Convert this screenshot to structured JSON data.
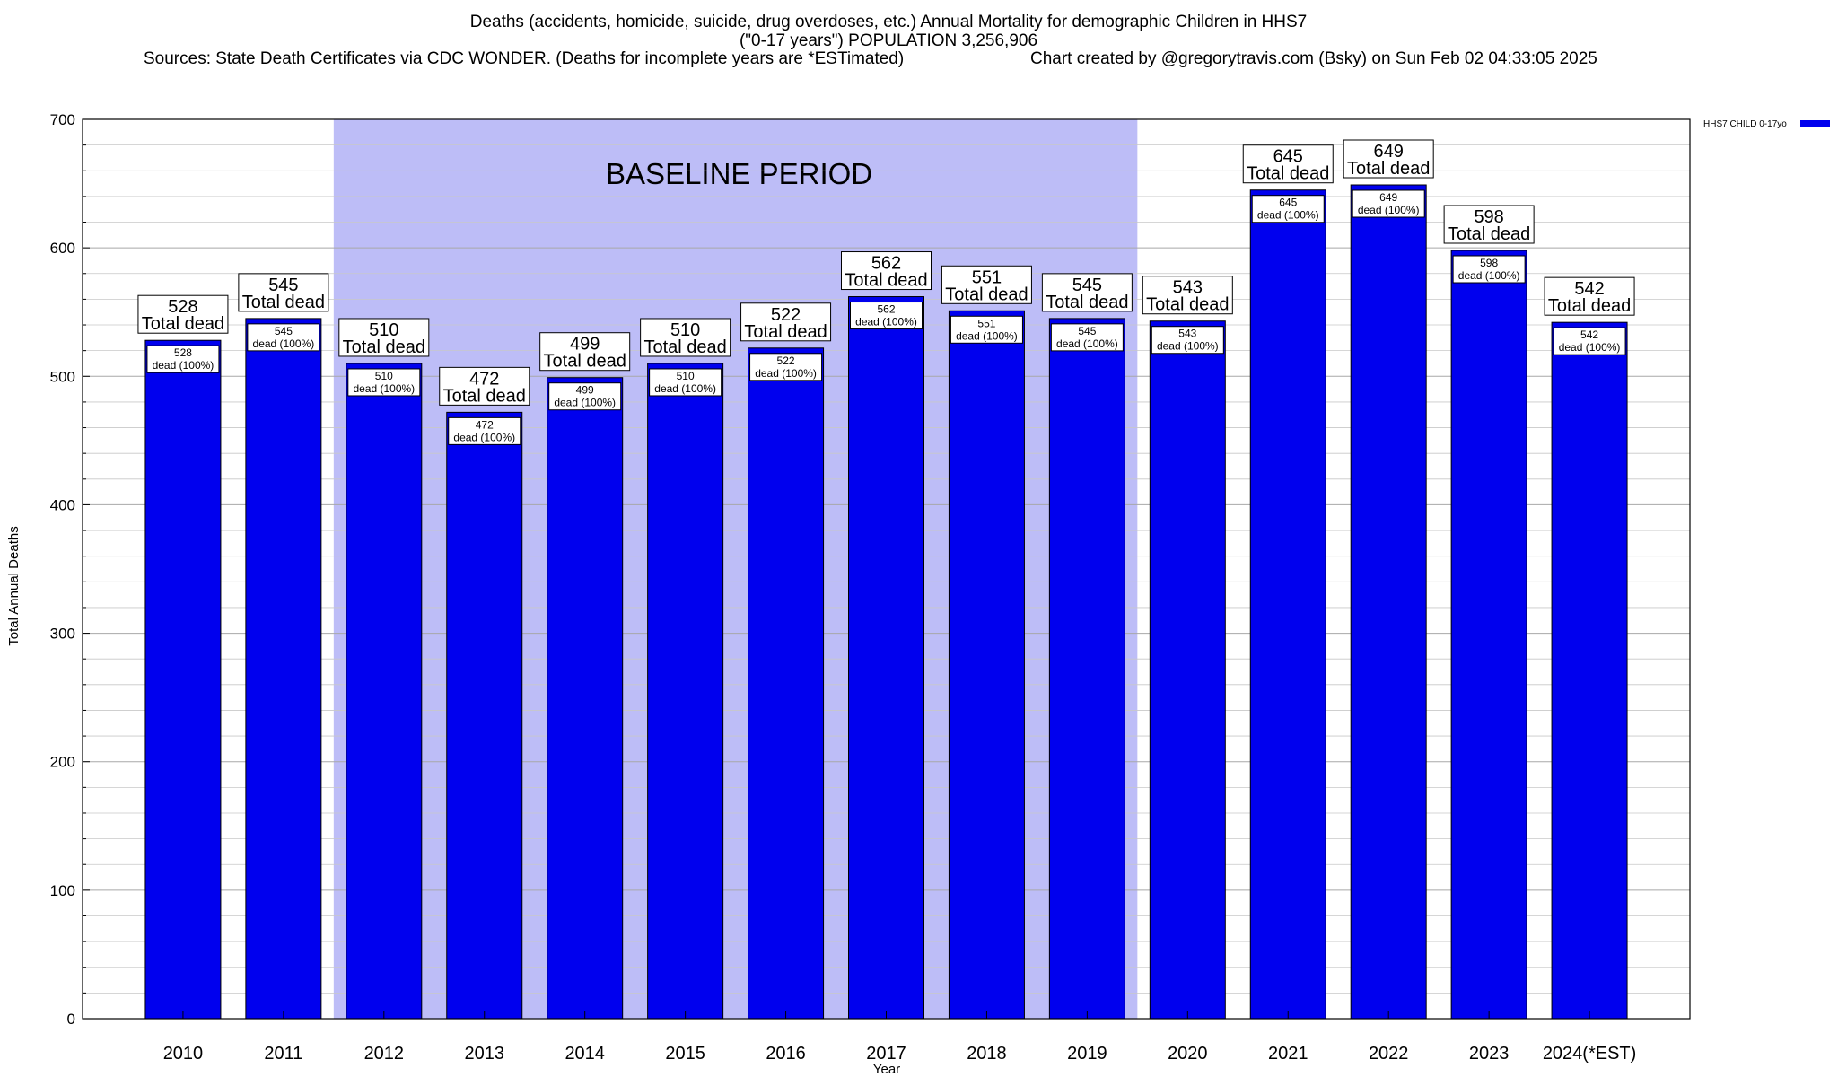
{
  "chart_data": {
    "type": "bar",
    "title": "Deaths (accidents, homicide, suicide, drug overdoses, etc.) Annual Mortality for demographic Children in HHS7",
    "title_line2": "(\"0-17 years\") POPULATION 3,256,906",
    "sources": "Sources: State Death Certificates via CDC WONDER. (Deaths for incomplete years are *ESTimated)",
    "credit": "Chart created by @gregorytravis.com (Bsky) on Sun Feb 02 04:33:05 2025",
    "xlabel": "Year",
    "ylabel": "Total Annual Deaths",
    "ylim": [
      0,
      700
    ],
    "yticks": [
      "0",
      "100",
      "200",
      "300",
      "400",
      "500",
      "600",
      "700"
    ],
    "categories": [
      "2010",
      "2011",
      "2012",
      "2013",
      "2014",
      "2015",
      "2016",
      "2017",
      "2018",
      "2019",
      "2020",
      "2021",
      "2022",
      "2023",
      "2024(*EST)"
    ],
    "series": [
      {
        "name": "HHS7 CHILD 0-17yo",
        "color": "#0000ee",
        "values": [
          528,
          545,
          510,
          472,
          499,
          510,
          522,
          562,
          551,
          545,
          543,
          645,
          649,
          598,
          542
        ]
      }
    ],
    "annotation_outer_suffix": "Total dead",
    "annotation_inner_suffix": "dead (100%)",
    "shaded_region": {
      "label": "BASELINE PERIOD",
      "from": "2012",
      "to": "2019",
      "color": "#bdbdf7"
    },
    "grid": true,
    "legend_position": "top-right"
  }
}
